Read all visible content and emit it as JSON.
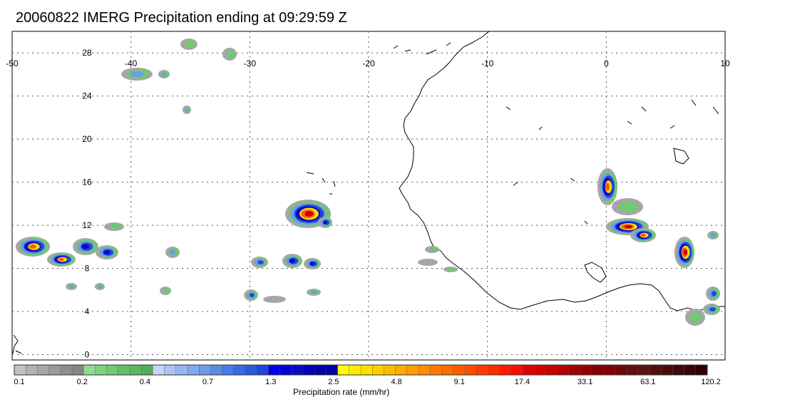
{
  "title": "20060822 IMERG Precipitation ending at 09:29:59 Z",
  "map": {
    "lon_ticks": [
      "-50",
      "-40",
      "-30",
      "-20",
      "-10",
      "0",
      "10"
    ],
    "lat_ticks": [
      "28",
      "24",
      "20",
      "16",
      "12",
      "8",
      "4",
      "0"
    ],
    "lon_range": [
      -50,
      10
    ],
    "lat_range": [
      -0.5,
      30
    ],
    "grid": true
  },
  "colorbar": {
    "label": "Precipitation rate (mm/hr)",
    "tick_labels": [
      "0.1",
      "0.2",
      "0.4",
      "0.7",
      "1.3",
      "2.5",
      "4.8",
      "9.1",
      "17.4",
      "33.1",
      "63.1",
      "120.2"
    ],
    "colors": [
      "#c2c2c2",
      "#b2b2b2",
      "#a6a6a6",
      "#9a9a9a",
      "#8e8e8e",
      "#848484",
      "#8fdc8f",
      "#7ed37e",
      "#70c870",
      "#66bf66",
      "#5cb65c",
      "#54ae54",
      "#c4d4fa",
      "#abc4f6",
      "#96b6f2",
      "#82a8ee",
      "#6e9aea",
      "#5a8ce6",
      "#4a7ae4",
      "#3a68e0",
      "#2c58dc",
      "#2046d8",
      "#0000e8",
      "#0000d4",
      "#0a0ac4",
      "#0000b8",
      "#0000ac",
      "#0000a0",
      "#ffff00",
      "#ffee00",
      "#ffde00",
      "#ffcd00",
      "#ffbd00",
      "#ffac00",
      "#ff9c00",
      "#ff8c00",
      "#ff7c00",
      "#ff6c00",
      "#ff5c00",
      "#ff4c00",
      "#ff3c00",
      "#ff2c00",
      "#ff1c00",
      "#f41000",
      "#e40000",
      "#d40000",
      "#c40000",
      "#b40000",
      "#a40000",
      "#940000",
      "#840000",
      "#800000",
      "#700808",
      "#641010",
      "#581414",
      "#501010",
      "#480c0c",
      "#400808",
      "#380404",
      "#300000"
    ]
  },
  "layers": {
    "coastline": "Africa coastline",
    "precipitation": "IMERG precipitation rate"
  }
}
